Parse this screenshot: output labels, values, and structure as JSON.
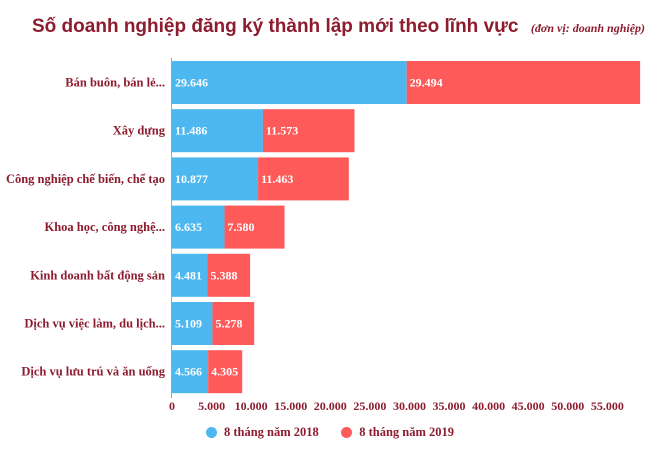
{
  "chart_data": {
    "type": "bar",
    "orientation": "horizontal",
    "stacked": true,
    "title": "Số doanh nghiệp đăng ký thành lập mới theo lĩnh vực",
    "subtitle": "(đơn vị: doanh nghiệp)",
    "categories": [
      "Bán buôn, bán lẻ...",
      "Xây dựng",
      "Công nghiệp chế biến, chế tạo",
      "Khoa học, công nghệ...",
      "Kinh doanh bất động sản",
      "Dịch vụ việc làm, du lịch...",
      "Dịch vụ lưu trú và ăn uống"
    ],
    "series": [
      {
        "name": "8 tháng năm 2018",
        "color": "#4db8f0",
        "values": [
          29646,
          11486,
          10877,
          6635,
          4481,
          5109,
          4566
        ],
        "labels": [
          "29.646",
          "11.486",
          "10.877",
          "6.635",
          "4.481",
          "5.109",
          "4.566"
        ]
      },
      {
        "name": "8 tháng năm 2019",
        "color": "#ff5a5a",
        "values": [
          29494,
          11573,
          11463,
          7580,
          5388,
          5278,
          4305
        ],
        "labels": [
          "29.494",
          "11.573",
          "11.463",
          "7.580",
          "5.388",
          "5.278",
          "4.305"
        ]
      }
    ],
    "xlim": [
      0,
      59000
    ],
    "xticks": [
      0,
      5000,
      10000,
      15000,
      20000,
      25000,
      30000,
      35000,
      40000,
      45000,
      50000,
      55000
    ],
    "xtick_labels": [
      "0",
      "5.000",
      "10.000",
      "15.000",
      "20.000",
      "25.000",
      "30.000",
      "35.000",
      "40.000",
      "45.000",
      "50.000",
      "55.000"
    ],
    "grid": false,
    "legend_position": "bottom"
  }
}
